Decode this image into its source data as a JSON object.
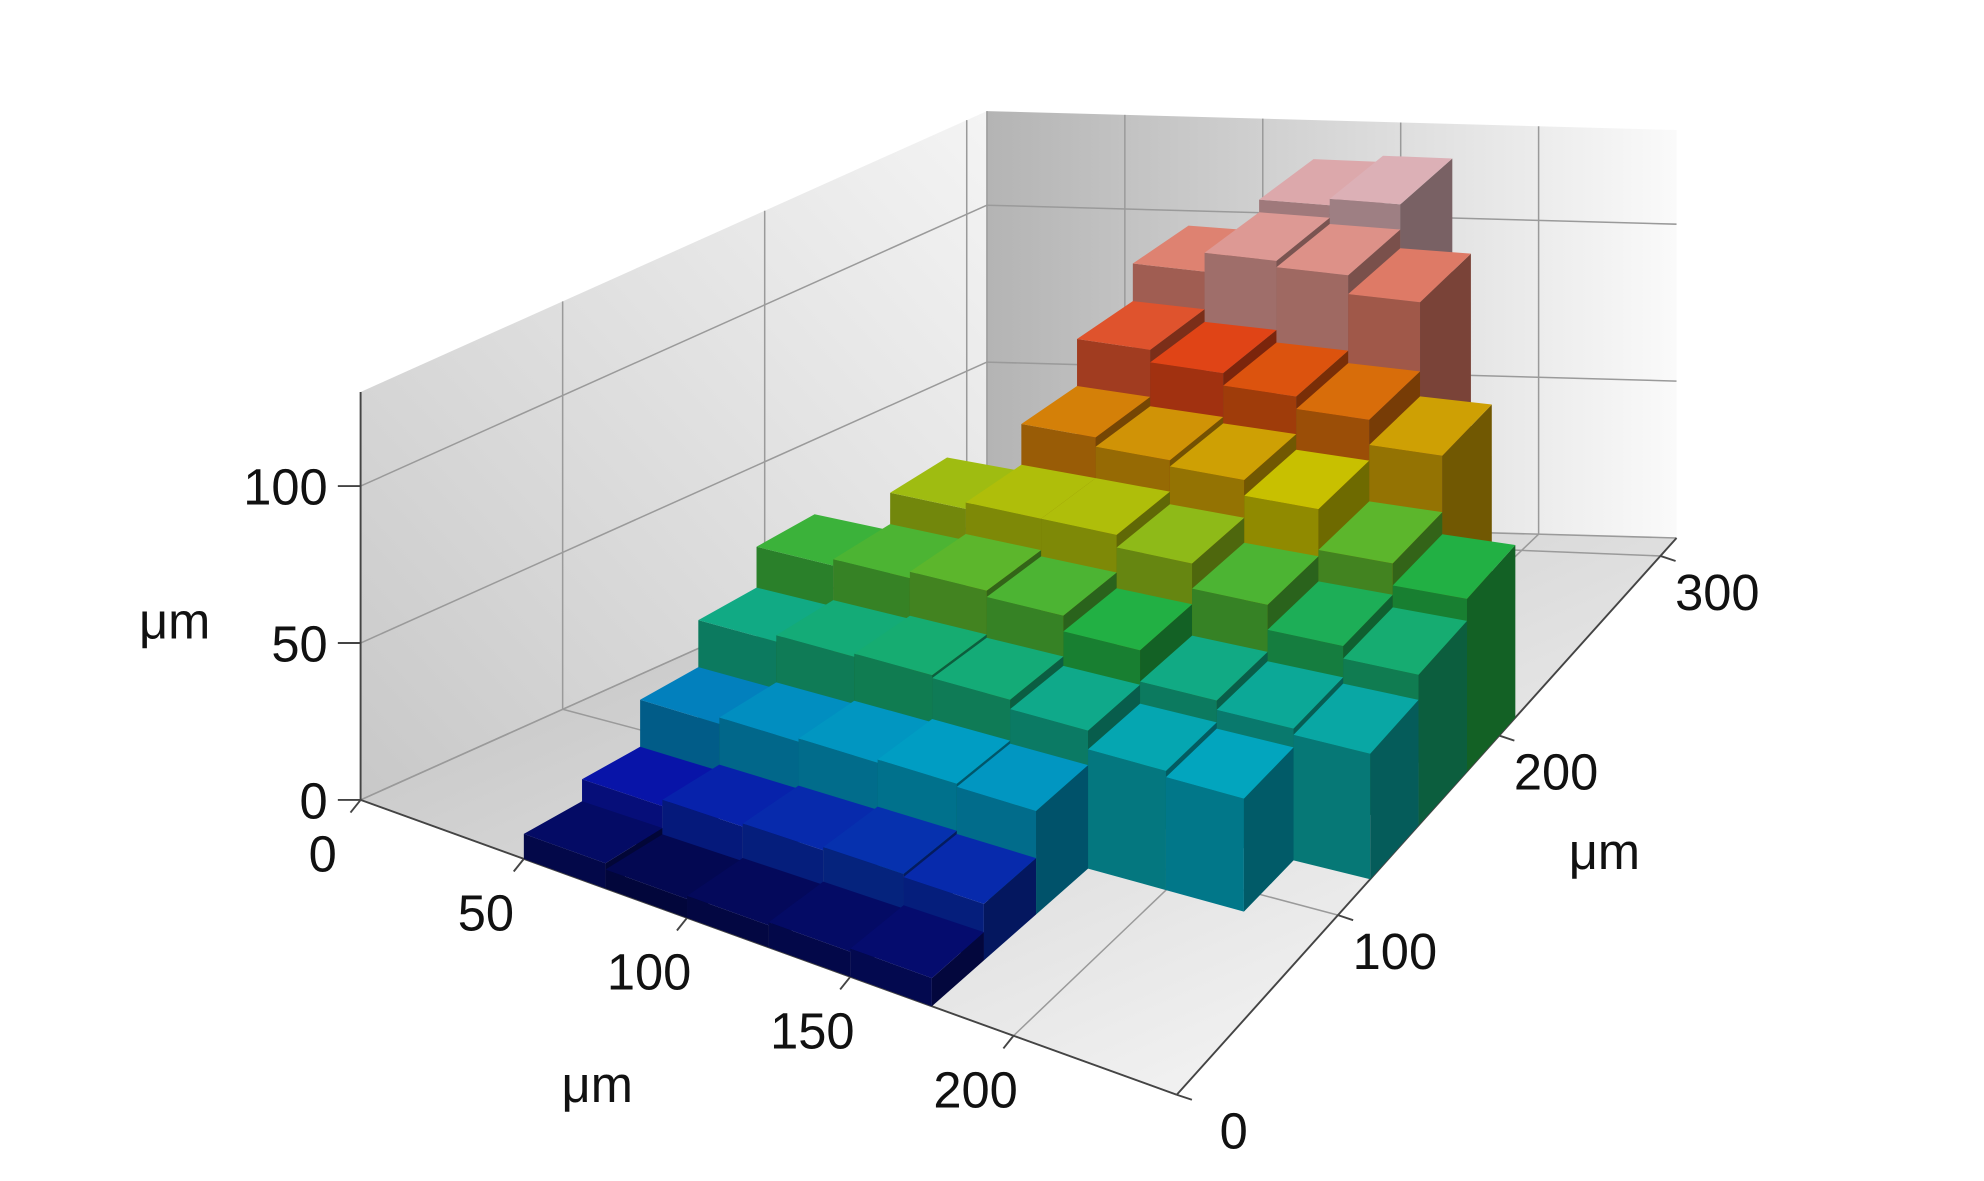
{
  "chart_data": {
    "type": "surface",
    "x": [
      12.5,
      37.5,
      62.5,
      87.5,
      112.5,
      137.5,
      162.5,
      187.5,
      212.5,
      237.5
    ],
    "y": [
      15,
      45,
      75,
      105,
      135,
      165,
      195,
      225,
      255,
      285
    ],
    "z": [
      [
        null,
        null,
        8,
        6,
        7,
        8,
        9,
        null,
        null,
        null
      ],
      [
        null,
        null,
        15,
        17,
        18,
        19,
        18,
        null,
        null,
        null
      ],
      [
        null,
        null,
        30,
        32,
        33,
        34,
        33,
        null,
        null,
        null
      ],
      [
        null,
        null,
        45,
        47,
        48,
        47,
        44,
        38,
        36,
        null
      ],
      [
        null,
        null,
        58,
        60,
        62,
        60,
        55,
        45,
        42,
        40
      ],
      [
        null,
        null,
        null,
        70,
        72,
        72,
        68,
        60,
        52,
        48
      ],
      [
        null,
        null,
        null,
        null,
        85,
        82,
        80,
        75,
        62,
        55
      ],
      [
        null,
        null,
        null,
        null,
        100,
        96,
        92,
        88,
        80,
        null
      ],
      [
        null,
        null,
        null,
        null,
        112,
        118,
        116,
        110,
        null,
        null
      ],
      [
        null,
        null,
        null,
        null,
        null,
        122,
        124,
        null,
        null,
        null
      ]
    ],
    "xlim": [
      0,
      250
    ],
    "xticks": [
      0,
      50,
      100,
      150,
      200
    ],
    "ylim": [
      0,
      310
    ],
    "yticks": [
      0,
      100,
      200,
      300
    ],
    "zlim": [
      0,
      130
    ],
    "zticks": [
      0,
      50,
      100
    ],
    "xlabel": "μm",
    "ylabel": "μm",
    "zlabel": "μm",
    "grid": true,
    "colorscale": [
      [
        0,
        "#000018"
      ],
      [
        15,
        "#0814a8"
      ],
      [
        35,
        "#00a4c4"
      ],
      [
        55,
        "#22b044"
      ],
      [
        75,
        "#c8c000"
      ],
      [
        95,
        "#e04010"
      ],
      [
        125,
        "#dcb4bc"
      ]
    ]
  }
}
